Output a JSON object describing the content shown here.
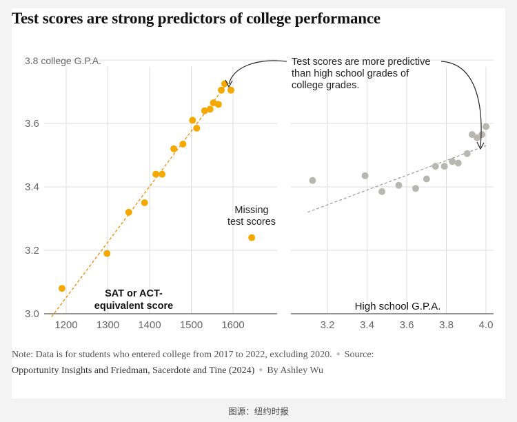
{
  "title": "Test scores are strong predictors of college performance",
  "colors": {
    "left_points": "#f5a800",
    "left_trend": "#f08a00",
    "right_points": "#b8b8b0",
    "right_trend": "#999999",
    "grid": "#dddddd",
    "axis": "#555555"
  },
  "chart_data": [
    {
      "type": "scatter",
      "panel": "left",
      "xlabel": "SAT or ACT-equivalent score",
      "xlabel_lines": [
        "SAT or ACT-",
        "equivalent score"
      ],
      "ylabel": "3.8 college G.P.A.",
      "ylim": [
        3.0,
        3.8
      ],
      "xlim": [
        1150,
        1700
      ],
      "y_ticks": [
        3.0,
        3.2,
        3.4,
        3.6
      ],
      "y_top_label": "3.8 college G.P.A.",
      "x_ticks": [
        1200,
        1300,
        1400,
        1500,
        1600
      ],
      "grid": true,
      "points": [
        {
          "x": 1190,
          "y": 3.08
        },
        {
          "x": 1298,
          "y": 3.19
        },
        {
          "x": 1350,
          "y": 3.32
        },
        {
          "x": 1388,
          "y": 3.35
        },
        {
          "x": 1415,
          "y": 3.44
        },
        {
          "x": 1430,
          "y": 3.44
        },
        {
          "x": 1458,
          "y": 3.52
        },
        {
          "x": 1480,
          "y": 3.535
        },
        {
          "x": 1503,
          "y": 3.61
        },
        {
          "x": 1513,
          "y": 3.585
        },
        {
          "x": 1532,
          "y": 3.64
        },
        {
          "x": 1545,
          "y": 3.645
        },
        {
          "x": 1553,
          "y": 3.665
        },
        {
          "x": 1565,
          "y": 3.66
        },
        {
          "x": 1572,
          "y": 3.705
        },
        {
          "x": 1580,
          "y": 3.725
        },
        {
          "x": 1595,
          "y": 3.705
        }
      ],
      "missing_point": {
        "x": 1645,
        "y": 3.24,
        "label_lines": [
          "Missing",
          "test scores"
        ]
      },
      "trendline": {
        "start": {
          "x": 1165,
          "y": 2.99
        },
        "end": {
          "x": 1588,
          "y": 3.73
        }
      }
    },
    {
      "type": "scatter",
      "panel": "right",
      "xlabel": "High school G.P.A.",
      "ylim": [
        3.0,
        3.8
      ],
      "xlim": [
        3.1,
        4.02
      ],
      "x_ticks": [
        3.2,
        3.4,
        3.6,
        3.8,
        4.0
      ],
      "x_tick_labels": [
        "3.2",
        "3.4",
        "3.6",
        "3.8",
        "4.0"
      ],
      "grid": true,
      "points": [
        {
          "x": 3.125,
          "y": 3.42
        },
        {
          "x": 3.39,
          "y": 3.435
        },
        {
          "x": 3.475,
          "y": 3.385
        },
        {
          "x": 3.56,
          "y": 3.405
        },
        {
          "x": 3.645,
          "y": 3.395
        },
        {
          "x": 3.7,
          "y": 3.425
        },
        {
          "x": 3.745,
          "y": 3.465
        },
        {
          "x": 3.79,
          "y": 3.465
        },
        {
          "x": 3.83,
          "y": 3.48
        },
        {
          "x": 3.86,
          "y": 3.475
        },
        {
          "x": 3.905,
          "y": 3.505
        },
        {
          "x": 3.93,
          "y": 3.565
        },
        {
          "x": 3.955,
          "y": 3.555
        },
        {
          "x": 3.98,
          "y": 3.565
        },
        {
          "x": 4.0,
          "y": 3.59
        }
      ],
      "trendline": {
        "start": {
          "x": 3.1,
          "y": 3.32
        },
        "end": {
          "x": 4.0,
          "y": 3.53
        }
      }
    }
  ],
  "annotation": {
    "lines": [
      "Test scores are more predictive",
      "than high school grades of",
      "college grades."
    ]
  },
  "note": {
    "text": "Note: Data is for students who entered college from 2017 to 2022, excluding 2020.",
    "source_label": "Source:",
    "source_text": "Opportunity Insights and Friedman, Sacerdote and Tine (2024)",
    "byline": "By Ashley Wu"
  },
  "credit": "图源：纽约时报"
}
